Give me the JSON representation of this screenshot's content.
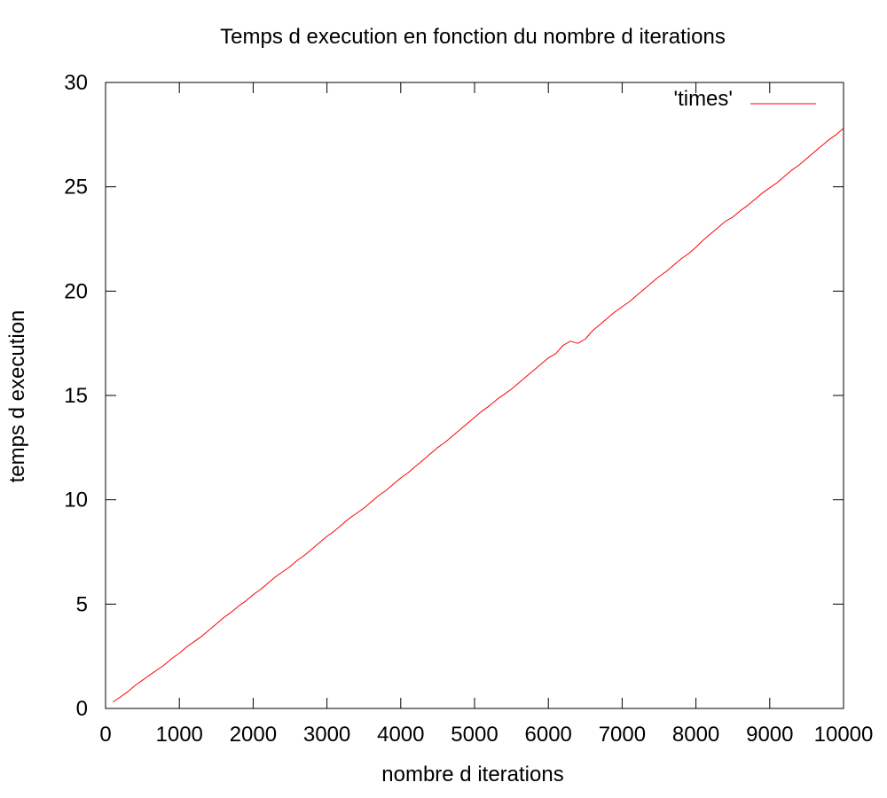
{
  "chart_data": {
    "type": "line",
    "title": "Temps d execution en fonction du nombre d iterations",
    "xlabel": "nombre d iterations",
    "ylabel": "temps d execution",
    "xlim": [
      0,
      10000
    ],
    "ylim": [
      0,
      30
    ],
    "xticks": [
      0,
      1000,
      2000,
      3000,
      4000,
      5000,
      6000,
      7000,
      8000,
      9000,
      10000
    ],
    "yticks": [
      0,
      5,
      10,
      15,
      20,
      25,
      30
    ],
    "grid": false,
    "legend_position": "top-right",
    "series": [
      {
        "name": "'times'",
        "color": "#ff0000",
        "x": [
          100,
          200,
          300,
          400,
          500,
          600,
          700,
          800,
          900,
          1000,
          1100,
          1200,
          1300,
          1400,
          1500,
          1600,
          1700,
          1800,
          1900,
          2000,
          2100,
          2200,
          2300,
          2400,
          2500,
          2600,
          2700,
          2800,
          2900,
          3000,
          3100,
          3200,
          3300,
          3400,
          3500,
          3600,
          3700,
          3800,
          3900,
          4000,
          4100,
          4200,
          4300,
          4400,
          4500,
          4600,
          4700,
          4800,
          4900,
          5000,
          5100,
          5200,
          5300,
          5400,
          5500,
          5600,
          5700,
          5800,
          5900,
          6000,
          6100,
          6200,
          6300,
          6400,
          6500,
          6600,
          6700,
          6800,
          6900,
          7000,
          7100,
          7200,
          7300,
          7400,
          7500,
          7600,
          7700,
          7800,
          7900,
          8000,
          8100,
          8200,
          8300,
          8400,
          8500,
          8600,
          8700,
          8800,
          8900,
          9000,
          9100,
          9200,
          9300,
          9400,
          9500,
          9600,
          9700,
          9800,
          9900,
          10000
        ],
        "y": [
          0.3,
          0.55,
          0.8,
          1.1,
          1.35,
          1.6,
          1.85,
          2.1,
          2.4,
          2.65,
          2.95,
          3.2,
          3.45,
          3.75,
          4.05,
          4.35,
          4.6,
          4.9,
          5.15,
          5.45,
          5.7,
          6.0,
          6.3,
          6.55,
          6.8,
          7.1,
          7.35,
          7.65,
          7.95,
          8.25,
          8.5,
          8.8,
          9.1,
          9.35,
          9.6,
          9.9,
          10.2,
          10.45,
          10.75,
          11.05,
          11.3,
          11.6,
          11.9,
          12.2,
          12.5,
          12.75,
          13.05,
          13.35,
          13.65,
          13.95,
          14.25,
          14.5,
          14.8,
          15.05,
          15.3,
          15.6,
          15.9,
          16.2,
          16.5,
          16.8,
          17.0,
          17.4,
          17.6,
          17.5,
          17.7,
          18.1,
          18.4,
          18.7,
          19.0,
          19.25,
          19.5,
          19.8,
          20.1,
          20.4,
          20.7,
          20.95,
          21.25,
          21.55,
          21.8,
          22.1,
          22.45,
          22.75,
          23.05,
          23.35,
          23.55,
          23.85,
          24.1,
          24.4,
          24.7,
          24.95,
          25.2,
          25.5,
          25.8,
          26.05,
          26.35,
          26.65,
          26.95,
          27.25,
          27.5,
          27.8
        ]
      }
    ]
  }
}
